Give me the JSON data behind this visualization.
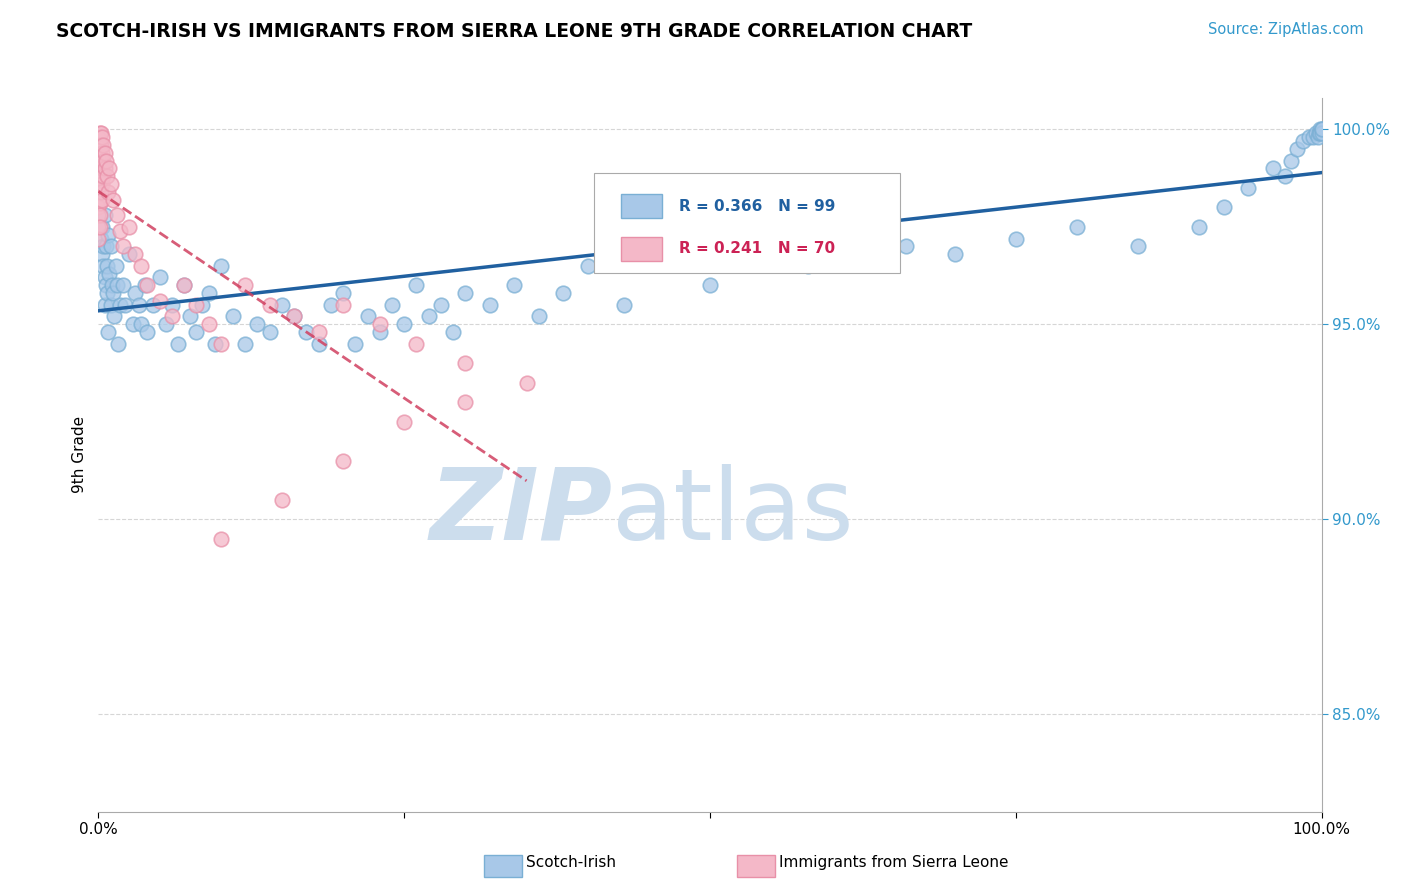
{
  "title": "SCOTCH-IRISH VS IMMIGRANTS FROM SIERRA LEONE 9TH GRADE CORRELATION CHART",
  "source_text": "Source: ZipAtlas.com",
  "ylabel": "9th Grade",
  "xlim": [
    0.0,
    1.0
  ],
  "ylim": [
    0.825,
    1.008
  ],
  "yticks": [
    0.85,
    0.9,
    0.95,
    1.0
  ],
  "ytick_labels": [
    "85.0%",
    "90.0%",
    "95.0%",
    "100.0%"
  ],
  "legend_R1": "R = 0.366",
  "legend_N1": "N = 99",
  "legend_R2": "R = 0.241",
  "legend_N2": "N = 70",
  "blue_color": "#a8c8e8",
  "blue_edge_color": "#7aafd4",
  "pink_color": "#f4b8c8",
  "pink_edge_color": "#e890a8",
  "blue_line_color": "#2060a0",
  "pink_line_color": "#d04060",
  "watermark_color": "#ccdded",
  "background_color": "#ffffff",
  "grid_color": "#cccccc",
  "scotch_irish_x": [
    0.002,
    0.003,
    0.003,
    0.004,
    0.004,
    0.005,
    0.005,
    0.005,
    0.006,
    0.006,
    0.007,
    0.007,
    0.008,
    0.008,
    0.009,
    0.01,
    0.01,
    0.011,
    0.012,
    0.013,
    0.014,
    0.015,
    0.016,
    0.018,
    0.02,
    0.022,
    0.025,
    0.028,
    0.03,
    0.033,
    0.035,
    0.038,
    0.04,
    0.045,
    0.05,
    0.055,
    0.06,
    0.065,
    0.07,
    0.075,
    0.08,
    0.085,
    0.09,
    0.095,
    0.1,
    0.11,
    0.12,
    0.13,
    0.14,
    0.15,
    0.16,
    0.17,
    0.18,
    0.19,
    0.2,
    0.21,
    0.22,
    0.23,
    0.24,
    0.25,
    0.26,
    0.27,
    0.28,
    0.29,
    0.3,
    0.32,
    0.34,
    0.36,
    0.38,
    0.4,
    0.43,
    0.46,
    0.5,
    0.54,
    0.58,
    0.62,
    0.66,
    0.7,
    0.75,
    0.8,
    0.85,
    0.9,
    0.92,
    0.94,
    0.96,
    0.97,
    0.975,
    0.98,
    0.985,
    0.99,
    0.993,
    0.995,
    0.997,
    0.998,
    0.999,
    0.999,
    1.0,
    1.0,
    1.0
  ],
  "scotch_irish_y": [
    0.972,
    0.975,
    0.968,
    0.97,
    0.965,
    0.978,
    0.962,
    0.955,
    0.96,
    0.97,
    0.965,
    0.958,
    0.973,
    0.948,
    0.963,
    0.97,
    0.955,
    0.96,
    0.958,
    0.952,
    0.965,
    0.96,
    0.945,
    0.955,
    0.96,
    0.955,
    0.968,
    0.95,
    0.958,
    0.955,
    0.95,
    0.96,
    0.948,
    0.955,
    0.962,
    0.95,
    0.955,
    0.945,
    0.96,
    0.952,
    0.948,
    0.955,
    0.958,
    0.945,
    0.965,
    0.952,
    0.945,
    0.95,
    0.948,
    0.955,
    0.952,
    0.948,
    0.945,
    0.955,
    0.958,
    0.945,
    0.952,
    0.948,
    0.955,
    0.95,
    0.96,
    0.952,
    0.955,
    0.948,
    0.958,
    0.955,
    0.96,
    0.952,
    0.958,
    0.965,
    0.955,
    0.968,
    0.96,
    0.97,
    0.965,
    0.975,
    0.97,
    0.968,
    0.972,
    0.975,
    0.97,
    0.975,
    0.98,
    0.985,
    0.99,
    0.988,
    0.992,
    0.995,
    0.997,
    0.998,
    0.998,
    0.999,
    0.998,
    0.999,
    1.0,
    0.999,
    1.0,
    0.999,
    1.0
  ],
  "sierra_leone_x": [
    0.0,
    0.0,
    0.0,
    0.0,
    0.0,
    0.0,
    0.0,
    0.0,
    0.0,
    0.0,
    0.0,
    0.0,
    0.001,
    0.001,
    0.001,
    0.001,
    0.001,
    0.001,
    0.001,
    0.001,
    0.001,
    0.002,
    0.002,
    0.002,
    0.002,
    0.002,
    0.002,
    0.003,
    0.003,
    0.003,
    0.003,
    0.003,
    0.004,
    0.004,
    0.004,
    0.005,
    0.005,
    0.006,
    0.007,
    0.008,
    0.009,
    0.01,
    0.012,
    0.015,
    0.018,
    0.02,
    0.025,
    0.03,
    0.035,
    0.04,
    0.05,
    0.06,
    0.07,
    0.08,
    0.09,
    0.1,
    0.12,
    0.14,
    0.16,
    0.18,
    0.2,
    0.23,
    0.26,
    0.3,
    0.35,
    0.3,
    0.25,
    0.2,
    0.15,
    0.1
  ],
  "sierra_leone_y": [
    0.998,
    0.996,
    0.993,
    0.991,
    0.988,
    0.986,
    0.984,
    0.982,
    0.98,
    0.978,
    0.975,
    0.972,
    0.999,
    0.996,
    0.993,
    0.99,
    0.987,
    0.984,
    0.981,
    0.978,
    0.975,
    0.999,
    0.996,
    0.993,
    0.99,
    0.987,
    0.984,
    0.998,
    0.994,
    0.99,
    0.986,
    0.982,
    0.996,
    0.992,
    0.988,
    0.994,
    0.99,
    0.992,
    0.988,
    0.984,
    0.99,
    0.986,
    0.982,
    0.978,
    0.974,
    0.97,
    0.975,
    0.968,
    0.965,
    0.96,
    0.956,
    0.952,
    0.96,
    0.955,
    0.95,
    0.945,
    0.96,
    0.955,
    0.952,
    0.948,
    0.955,
    0.95,
    0.945,
    0.94,
    0.935,
    0.93,
    0.925,
    0.915,
    0.905,
    0.895
  ]
}
